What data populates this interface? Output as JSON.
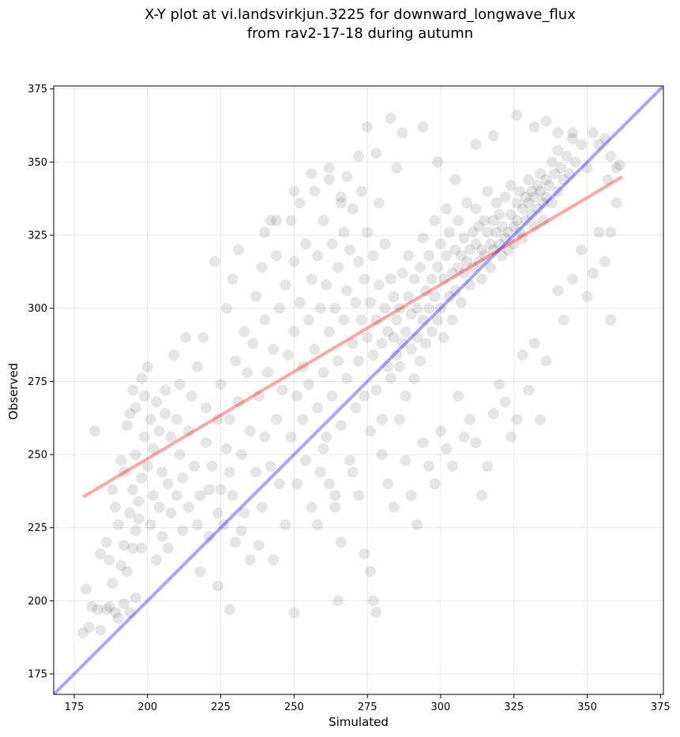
{
  "chart_data": {
    "type": "scatter",
    "title_lines": [
      "X-Y plot at vi.landsvirkjun.3225 for downward_longwave_flux",
      "from rav2-17-18 during autumn"
    ],
    "xlabel": "Simulated",
    "ylabel": "Observed",
    "xlim": [
      168,
      376
    ],
    "ylim": [
      168,
      376
    ],
    "xticks": [
      175,
      200,
      225,
      250,
      275,
      300,
      325,
      350,
      375
    ],
    "yticks": [
      175,
      200,
      225,
      250,
      275,
      300,
      325,
      350,
      375
    ],
    "grid": true,
    "point_color": "#000000",
    "point_opacity": 0.1,
    "point_size": 7,
    "identity_line": {
      "color": "#0000ff",
      "opacity": 0.35,
      "x": [
        168,
        376
      ],
      "y": [
        168,
        376
      ]
    },
    "regression_line": {
      "color": "#ff0000",
      "opacity": 0.35,
      "x": [
        178,
        362
      ],
      "y": [
        235.5,
        345
      ]
    },
    "points": [
      [
        178,
        189
      ],
      [
        179,
        204
      ],
      [
        180,
        191
      ],
      [
        181,
        198
      ],
      [
        183,
        197
      ],
      [
        184,
        190
      ],
      [
        186,
        197
      ],
      [
        187,
        198
      ],
      [
        189,
        196
      ],
      [
        190,
        194
      ],
      [
        192,
        199
      ],
      [
        194,
        196
      ],
      [
        196,
        201
      ],
      [
        182,
        258
      ],
      [
        184,
        216
      ],
      [
        186,
        220
      ],
      [
        187,
        214
      ],
      [
        188,
        206
      ],
      [
        188,
        238
      ],
      [
        189,
        232
      ],
      [
        190,
        226
      ],
      [
        191,
        212
      ],
      [
        191,
        248
      ],
      [
        192,
        219
      ],
      [
        192,
        244
      ],
      [
        193,
        210
      ],
      [
        193,
        260
      ],
      [
        194,
        230
      ],
      [
        194,
        264
      ],
      [
        195,
        218
      ],
      [
        195,
        238
      ],
      [
        195,
        272
      ],
      [
        196,
        224
      ],
      [
        196,
        250
      ],
      [
        196,
        266
      ],
      [
        197,
        228
      ],
      [
        197,
        234
      ],
      [
        198,
        218
      ],
      [
        198,
        242
      ],
      [
        198,
        276
      ],
      [
        199,
        256
      ],
      [
        199,
        270
      ],
      [
        200,
        246
      ],
      [
        200,
        280
      ],
      [
        201,
        226
      ],
      [
        201,
        262
      ],
      [
        202,
        236
      ],
      [
        202,
        252
      ],
      [
        203,
        214
      ],
      [
        203,
        268
      ],
      [
        204,
        232
      ],
      [
        204,
        258
      ],
      [
        205,
        222
      ],
      [
        205,
        244
      ],
      [
        206,
        264
      ],
      [
        206,
        272
      ],
      [
        207,
        218
      ],
      [
        207,
        240
      ],
      [
        208,
        230
      ],
      [
        208,
        256
      ],
      [
        209,
        284
      ],
      [
        210,
        236
      ],
      [
        210,
        262
      ],
      [
        211,
        250
      ],
      [
        211,
        274
      ],
      [
        212,
        224
      ],
      [
        212,
        242
      ],
      [
        213,
        290
      ],
      [
        214,
        232
      ],
      [
        214,
        258
      ],
      [
        215,
        270
      ],
      [
        216,
        246
      ],
      [
        217,
        226
      ],
      [
        217,
        280
      ],
      [
        218,
        210
      ],
      [
        218,
        236
      ],
      [
        219,
        290
      ],
      [
        220,
        254
      ],
      [
        220,
        266
      ],
      [
        221,
        222
      ],
      [
        221,
        238
      ],
      [
        222,
        246
      ],
      [
        223,
        316
      ],
      [
        224,
        230
      ],
      [
        224,
        262
      ],
      [
        225,
        238
      ],
      [
        225,
        274
      ],
      [
        226,
        226
      ],
      [
        227,
        252
      ],
      [
        227,
        300
      ],
      [
        228,
        244
      ],
      [
        228,
        262
      ],
      [
        229,
        236
      ],
      [
        229,
        310
      ],
      [
        230,
        220
      ],
      [
        230,
        282
      ],
      [
        231,
        268
      ],
      [
        231,
        320
      ],
      [
        232,
        250
      ],
      [
        233,
        230
      ],
      [
        233,
        292
      ],
      [
        234,
        278
      ],
      [
        235,
        214
      ],
      [
        235,
        258
      ],
      [
        236,
        288
      ],
      [
        237,
        244
      ],
      [
        237,
        304
      ],
      [
        238,
        270
      ],
      [
        239,
        232
      ],
      [
        239,
        314
      ],
      [
        240,
        256
      ],
      [
        240,
        296
      ],
      [
        241,
        278
      ],
      [
        242,
        246
      ],
      [
        242,
        330
      ],
      [
        243,
        286
      ],
      [
        244,
        262
      ],
      [
        244,
        318
      ],
      [
        245,
        240
      ],
      [
        245,
        300
      ],
      [
        246,
        272
      ],
      [
        247,
        308
      ],
      [
        247,
        226
      ],
      [
        248,
        284
      ],
      [
        249,
        256
      ],
      [
        249,
        330
      ],
      [
        250,
        292
      ],
      [
        250,
        316
      ],
      [
        251,
        270
      ],
      [
        251,
        240
      ],
      [
        252,
        302
      ],
      [
        252,
        336
      ],
      [
        253,
        280
      ],
      [
        253,
        262
      ],
      [
        254,
        322
      ],
      [
        254,
        248
      ],
      [
        255,
        296
      ],
      [
        255,
        274
      ],
      [
        256,
        310
      ],
      [
        256,
        232
      ],
      [
        257,
        286
      ],
      [
        257,
        340
      ],
      [
        258,
        266
      ],
      [
        258,
        318
      ],
      [
        259,
        300
      ],
      [
        259,
        244
      ],
      [
        260,
        330
      ],
      [
        260,
        278
      ],
      [
        261,
        308
      ],
      [
        261,
        256
      ],
      [
        262,
        292
      ],
      [
        262,
        344
      ],
      [
        263,
        322
      ],
      [
        263,
        270
      ],
      [
        264,
        300
      ],
      [
        264,
        236
      ],
      [
        265,
        314
      ],
      [
        265,
        282
      ],
      [
        266,
        338
      ],
      [
        266,
        260
      ],
      [
        267,
        296
      ],
      [
        267,
        326
      ],
      [
        268,
        276
      ],
      [
        268,
        306
      ],
      [
        269,
        248
      ],
      [
        269,
        320
      ],
      [
        270,
        288
      ],
      [
        270,
        334
      ],
      [
        271,
        266
      ],
      [
        271,
        302
      ],
      [
        272,
        316
      ],
      [
        272,
        282
      ],
      [
        273,
        296
      ],
      [
        273,
        340
      ],
      [
        274,
        270
      ],
      [
        274,
        310
      ],
      [
        275,
        290
      ],
      [
        275,
        326
      ],
      [
        276,
        258
      ],
      [
        276,
        302
      ],
      [
        277,
        284
      ],
      [
        277,
        318
      ],
      [
        278,
        296
      ],
      [
        278,
        272
      ],
      [
        279,
        308
      ],
      [
        279,
        336
      ],
      [
        280,
        288
      ],
      [
        280,
        262
      ],
      [
        281,
        300
      ],
      [
        281,
        322
      ],
      [
        282,
        280
      ],
      [
        282,
        292
      ],
      [
        283,
        310
      ],
      [
        283,
        276
      ],
      [
        284,
        290
      ],
      [
        284,
        304
      ],
      [
        285,
        284
      ],
      [
        285,
        296
      ],
      [
        286,
        300
      ],
      [
        286,
        280
      ],
      [
        287,
        288
      ],
      [
        287,
        312
      ],
      [
        288,
        292
      ],
      [
        288,
        270
      ],
      [
        289,
        304
      ],
      [
        289,
        318
      ],
      [
        290,
        286
      ],
      [
        290,
        298
      ],
      [
        291,
        310
      ],
      [
        291,
        276
      ],
      [
        292,
        300
      ],
      [
        292,
        290
      ],
      [
        293,
        314
      ],
      [
        293,
        282
      ],
      [
        294,
        296
      ],
      [
        294,
        324
      ],
      [
        295,
        306
      ],
      [
        295,
        288
      ],
      [
        296,
        300
      ],
      [
        296,
        318
      ],
      [
        297,
        292
      ],
      [
        297,
        310
      ],
      [
        298,
        304
      ],
      [
        298,
        330
      ],
      [
        299,
        296
      ],
      [
        299,
        314
      ],
      [
        300,
        300
      ],
      [
        300,
        322
      ],
      [
        301,
        310
      ],
      [
        301,
        290
      ],
      [
        302,
        318
      ],
      [
        302,
        334
      ],
      [
        303,
        304
      ],
      [
        303,
        326
      ],
      [
        304,
        312
      ],
      [
        304,
        296
      ],
      [
        305,
        320
      ],
      [
        305,
        306
      ],
      [
        306,
        314
      ],
      [
        306,
        330
      ],
      [
        307,
        318
      ],
      [
        307,
        302
      ],
      [
        308,
        312
      ],
      [
        308,
        324
      ],
      [
        309,
        316
      ],
      [
        309,
        336
      ],
      [
        310,
        320
      ],
      [
        310,
        308
      ],
      [
        311,
        326
      ],
      [
        311,
        314
      ],
      [
        312,
        322
      ],
      [
        312,
        334
      ],
      [
        313,
        316
      ],
      [
        313,
        328
      ],
      [
        314,
        320
      ],
      [
        314,
        310
      ],
      [
        315,
        330
      ],
      [
        315,
        318
      ],
      [
        316,
        326
      ],
      [
        316,
        340
      ],
      [
        317,
        322
      ],
      [
        317,
        314
      ],
      [
        318,
        330
      ],
      [
        318,
        320
      ],
      [
        319,
        326
      ],
      [
        319,
        336
      ],
      [
        320,
        322
      ],
      [
        320,
        332
      ],
      [
        321,
        318
      ],
      [
        321,
        328
      ],
      [
        322,
        324
      ],
      [
        322,
        338
      ],
      [
        323,
        326
      ],
      [
        323,
        320
      ],
      [
        324,
        332
      ],
      [
        324,
        342
      ],
      [
        325,
        328
      ],
      [
        325,
        322
      ],
      [
        326,
        336
      ],
      [
        326,
        330
      ],
      [
        327,
        326
      ],
      [
        327,
        340
      ],
      [
        328,
        334
      ],
      [
        328,
        324
      ],
      [
        329,
        338
      ],
      [
        329,
        330
      ],
      [
        330,
        336
      ],
      [
        330,
        344
      ],
      [
        331,
        332
      ],
      [
        331,
        340
      ],
      [
        332,
        338
      ],
      [
        332,
        328
      ],
      [
        333,
        342
      ],
      [
        333,
        334
      ],
      [
        334,
        340
      ],
      [
        334,
        346
      ],
      [
        335,
        336
      ],
      [
        335,
        330
      ],
      [
        336,
        344
      ],
      [
        336,
        338
      ],
      [
        337,
        342
      ],
      [
        338,
        350
      ],
      [
        338,
        336
      ],
      [
        339,
        346
      ],
      [
        340,
        340
      ],
      [
        340,
        354
      ],
      [
        341,
        348
      ],
      [
        342,
        344
      ],
      [
        343,
        352
      ],
      [
        344,
        346
      ],
      [
        345,
        358
      ],
      [
        346,
        350
      ],
      [
        348,
        356
      ],
      [
        350,
        348
      ],
      [
        352,
        360
      ],
      [
        354,
        356
      ],
      [
        356,
        358
      ],
      [
        357,
        344
      ],
      [
        358,
        352
      ],
      [
        360,
        348
      ],
      [
        361,
        349
      ],
      [
        258,
        226
      ],
      [
        260,
        252
      ],
      [
        262,
        240
      ],
      [
        264,
        232
      ],
      [
        265,
        200
      ],
      [
        266,
        220
      ],
      [
        270,
        244
      ],
      [
        272,
        236
      ],
      [
        274,
        216
      ],
      [
        276,
        210
      ],
      [
        277,
        200
      ],
      [
        278,
        196
      ],
      [
        280,
        250
      ],
      [
        282,
        240
      ],
      [
        284,
        232
      ],
      [
        286,
        262
      ],
      [
        288,
        248
      ],
      [
        290,
        236
      ],
      [
        292,
        226
      ],
      [
        294,
        254
      ],
      [
        296,
        246
      ],
      [
        298,
        240
      ],
      [
        300,
        258
      ],
      [
        302,
        252
      ],
      [
        304,
        246
      ],
      [
        306,
        270
      ],
      [
        308,
        256
      ],
      [
        310,
        262
      ],
      [
        312,
        254
      ],
      [
        314,
        236
      ],
      [
        316,
        246
      ],
      [
        318,
        264
      ],
      [
        320,
        274
      ],
      [
        322,
        268
      ],
      [
        324,
        256
      ],
      [
        326,
        262
      ],
      [
        328,
        284
      ],
      [
        330,
        272
      ],
      [
        332,
        288
      ],
      [
        334,
        262
      ],
      [
        336,
        282
      ],
      [
        340,
        306
      ],
      [
        342,
        296
      ],
      [
        345,
        310
      ],
      [
        348,
        320
      ],
      [
        350,
        304
      ],
      [
        352,
        312
      ],
      [
        354,
        326
      ],
      [
        356,
        316
      ],
      [
        358,
        296
      ],
      [
        358,
        326
      ],
      [
        360,
        336
      ],
      [
        250,
        196
      ],
      [
        228,
        197
      ],
      [
        224,
        205
      ],
      [
        238,
        219
      ],
      [
        243,
        214
      ],
      [
        232,
        224
      ],
      [
        275,
        362
      ],
      [
        283,
        365
      ],
      [
        287,
        360
      ],
      [
        294,
        362
      ],
      [
        278,
        353
      ],
      [
        285,
        348
      ],
      [
        299,
        350
      ],
      [
        305,
        344
      ],
      [
        312,
        356
      ],
      [
        318,
        359
      ],
      [
        326,
        366
      ],
      [
        332,
        362
      ],
      [
        336,
        364
      ],
      [
        340,
        360
      ],
      [
        345,
        360
      ],
      [
        250,
        340
      ],
      [
        256,
        346
      ],
      [
        262,
        348
      ],
      [
        268,
        345
      ],
      [
        272,
        352
      ],
      [
        266,
        336
      ],
      [
        244,
        330
      ],
      [
        240,
        326
      ]
    ]
  }
}
